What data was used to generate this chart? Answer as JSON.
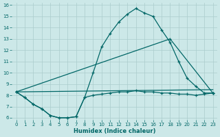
{
  "xlabel": "Humidex (Indice chaleur)",
  "bg_color": "#cce8e8",
  "grid_color": "#aacccc",
  "line_color": "#006666",
  "xlim": [
    -0.5,
    23.5
  ],
  "ylim": [
    5.8,
    16.2
  ],
  "yticks": [
    6,
    7,
    8,
    9,
    10,
    11,
    12,
    13,
    14,
    15,
    16
  ],
  "xticks": [
    0,
    1,
    2,
    3,
    4,
    5,
    6,
    7,
    8,
    9,
    10,
    11,
    12,
    13,
    14,
    15,
    16,
    17,
    18,
    19,
    20,
    21,
    22,
    23
  ],
  "curve1_x": [
    0,
    1,
    2,
    3,
    4,
    5,
    6,
    7,
    8,
    9,
    10,
    11,
    12,
    13,
    14,
    15,
    16,
    17,
    18,
    19,
    20,
    21,
    22,
    23
  ],
  "curve1_y": [
    8.3,
    7.8,
    7.2,
    6.8,
    6.2,
    6.0,
    6.0,
    6.1,
    7.8,
    10.0,
    12.3,
    13.5,
    14.5,
    15.2,
    15.7,
    15.3,
    15.0,
    13.8,
    12.7,
    11.0,
    9.5,
    8.8,
    8.2,
    8.2
  ],
  "line2_x": [
    0,
    18,
    23
  ],
  "line2_y": [
    8.3,
    13.0,
    8.2
  ],
  "line3_x": [
    0,
    23
  ],
  "line3_y": [
    8.3,
    8.5
  ],
  "curve4_x": [
    0,
    1,
    2,
    3,
    4,
    5,
    6,
    7,
    8,
    9,
    10,
    11,
    12,
    13,
    14,
    15,
    16,
    17,
    18,
    19,
    20,
    21,
    22,
    23
  ],
  "curve4_y": [
    8.3,
    7.8,
    7.2,
    6.8,
    6.2,
    6.0,
    6.0,
    6.1,
    7.8,
    8.0,
    8.1,
    8.2,
    8.3,
    8.3,
    8.4,
    8.3,
    8.3,
    8.2,
    8.2,
    8.1,
    8.1,
    8.0,
    8.1,
    8.2
  ]
}
